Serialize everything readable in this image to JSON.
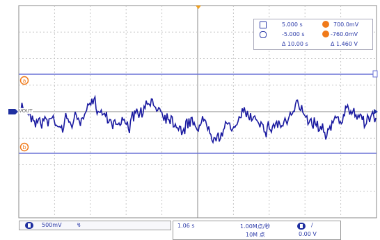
{
  "cursor_panel": {
    "row1": {
      "time": "5.000 s",
      "volt": "700.0mV"
    },
    "row2": {
      "time": "-5.000 s",
      "volt": "-760.0mV"
    },
    "row3": {
      "time": "Δ 10.00 s",
      "volt": "Δ 1.460 V"
    }
  },
  "channel": {
    "label": "VOUT",
    "scale": "500mV",
    "coupling_symbol": "↯"
  },
  "status": {
    "time_offset": "1.06 s",
    "sample_rate": "1.00M点/秒",
    "memory_depth": "10M 点",
    "trigger_edge": "/",
    "trigger_level": "0.00 V"
  },
  "colors": {
    "trace": "#1a1aa0",
    "cursor": "#6a72d6",
    "grid": "#b8b8b8",
    "marker_orange": "#f07a1a",
    "channel_badge": "#1f2fa0"
  },
  "icons": [
    "cursor-a-icon",
    "cursor-b-icon",
    "channel-1-icon",
    "trigger-icon",
    "ground-marker-icon"
  ]
}
